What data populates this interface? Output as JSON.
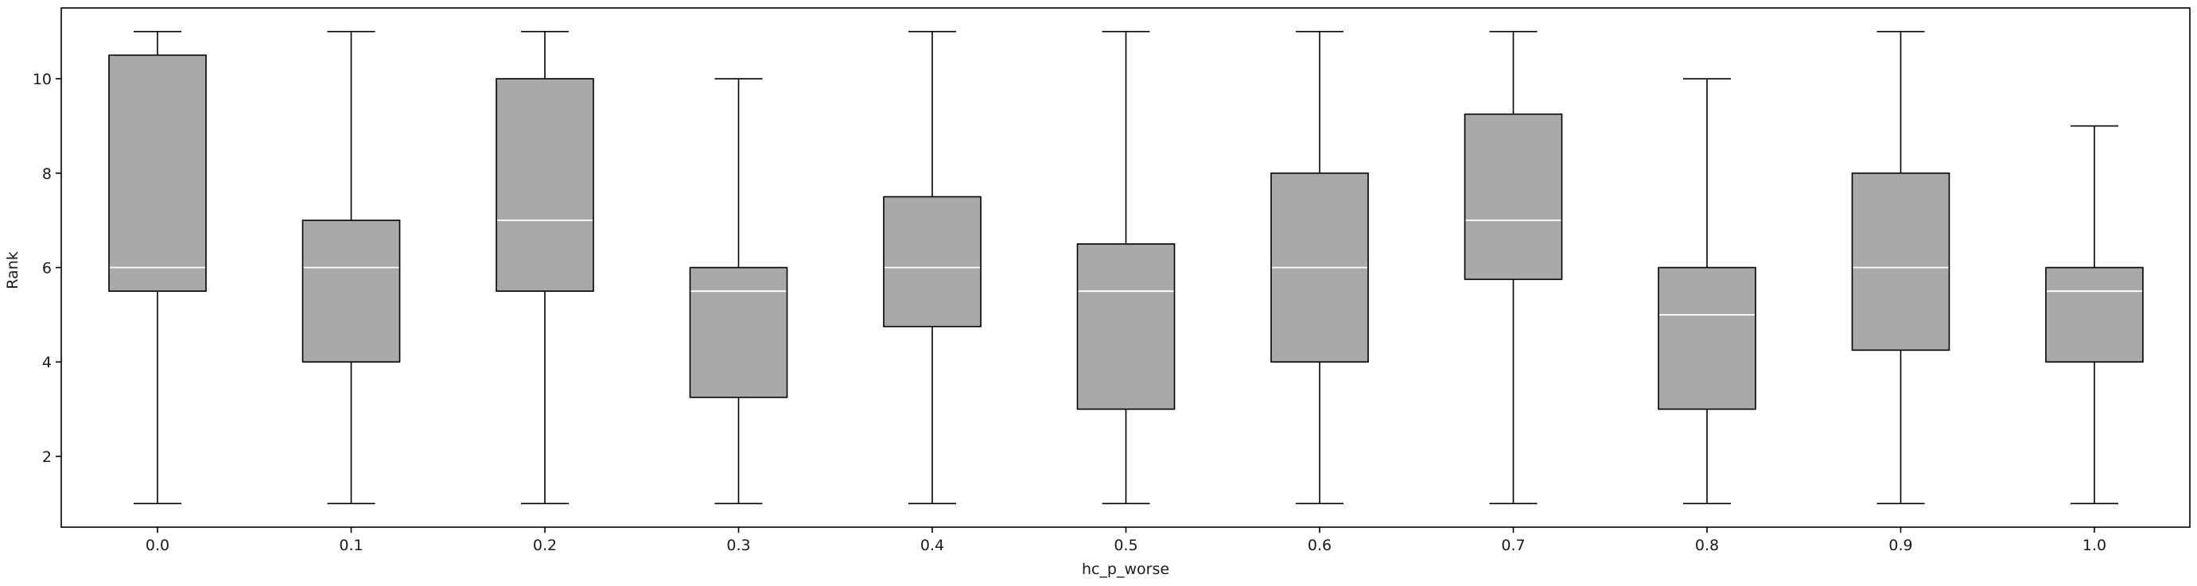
{
  "chart_data": {
    "type": "boxplot",
    "title": "",
    "xlabel": "hc_p_worse",
    "ylabel": "Rank",
    "categories": [
      "0.0",
      "0.1",
      "0.2",
      "0.3",
      "0.4",
      "0.5",
      "0.6",
      "0.7",
      "0.8",
      "0.9",
      "1.0"
    ],
    "ylim": [
      0.5,
      11.5
    ],
    "yticks": [
      2,
      4,
      6,
      8,
      10
    ],
    "grid": false,
    "boxes": [
      {
        "category": "0.0",
        "whisker_low": 1,
        "q1": 5.5,
        "median": 6,
        "q3": 10.5,
        "whisker_high": 11
      },
      {
        "category": "0.1",
        "whisker_low": 1,
        "q1": 4,
        "median": 6,
        "q3": 7,
        "whisker_high": 11
      },
      {
        "category": "0.2",
        "whisker_low": 1,
        "q1": 5.5,
        "median": 7,
        "q3": 10,
        "whisker_high": 11
      },
      {
        "category": "0.3",
        "whisker_low": 1,
        "q1": 3.25,
        "median": 5.5,
        "q3": 6,
        "whisker_high": 10
      },
      {
        "category": "0.4",
        "whisker_low": 1,
        "q1": 4.75,
        "median": 6,
        "q3": 7.5,
        "whisker_high": 11
      },
      {
        "category": "0.5",
        "whisker_low": 1,
        "q1": 3,
        "median": 5.5,
        "q3": 6.5,
        "whisker_high": 11
      },
      {
        "category": "0.6",
        "whisker_low": 1,
        "q1": 4,
        "median": 6,
        "q3": 8,
        "whisker_high": 11
      },
      {
        "category": "0.7",
        "whisker_low": 1,
        "q1": 5.75,
        "median": 7,
        "q3": 9.25,
        "whisker_high": 11
      },
      {
        "category": "0.8",
        "whisker_low": 1,
        "q1": 3,
        "median": 5,
        "q3": 6,
        "whisker_high": 10
      },
      {
        "category": "0.9",
        "whisker_low": 1,
        "q1": 4.25,
        "median": 6,
        "q3": 8,
        "whisker_high": 11
      },
      {
        "category": "1.0",
        "whisker_low": 1,
        "q1": 4,
        "median": 5.5,
        "q3": 6,
        "whisker_high": 9
      }
    ],
    "colors": {
      "box_fill": "#a9a9a9",
      "box_edge": "#000000",
      "median": "#ffffff",
      "whisker": "#000000",
      "axis": "#000000"
    }
  }
}
